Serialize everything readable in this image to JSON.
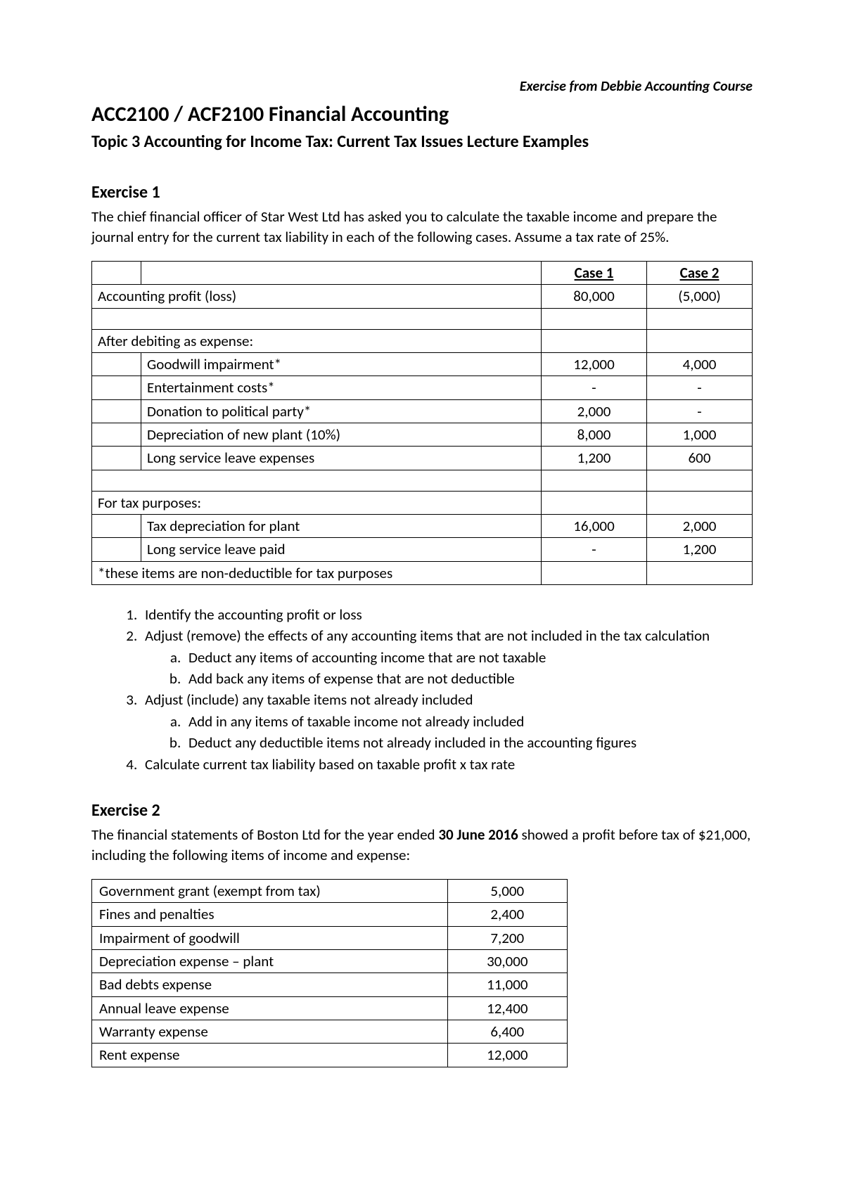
{
  "header": {
    "course_note": "Exercise from Debbie Accounting Course",
    "title": "ACC2100 / ACF2100 Financial Accounting",
    "subtitle": "Topic 3 Accounting for Income Tax: Current Tax Issues Lecture Examples"
  },
  "exercise1": {
    "heading": "Exercise 1",
    "intro": "The chief financial officer of Star West Ltd has asked you to calculate the taxable income and prepare the journal entry for the current tax liability in each of the following cases. Assume a tax rate of 25%.",
    "table": {
      "case1_header": "Case 1",
      "case2_header": "Case 2",
      "rows": [
        {
          "label": "Accounting profit (loss)",
          "span": true,
          "c1": "80,000",
          "c2": "(5,000)"
        },
        {
          "label": "",
          "span": true,
          "c1": "",
          "c2": ""
        },
        {
          "label": "After debiting as expense:",
          "span": true,
          "c1": "",
          "c2": ""
        },
        {
          "label": "Goodwill impairment*",
          "span": false,
          "c1": "12,000",
          "c2": "4,000"
        },
        {
          "label": "Entertainment costs*",
          "span": false,
          "c1": "-",
          "c2": "-"
        },
        {
          "label": "Donation to political party*",
          "span": false,
          "c1": "2,000",
          "c2": "-"
        },
        {
          "label": "Depreciation of new plant (10%)",
          "span": false,
          "c1": "8,000",
          "c2": "1,000"
        },
        {
          "label": "Long service leave expenses",
          "span": false,
          "c1": "1,200",
          "c2": "600"
        },
        {
          "label": "",
          "span": true,
          "c1": "",
          "c2": ""
        },
        {
          "label": "For tax purposes:",
          "span": true,
          "c1": "",
          "c2": ""
        },
        {
          "label": "Tax depreciation for plant",
          "span": false,
          "c1": "16,000",
          "c2": "2,000"
        },
        {
          "label": "Long service leave paid",
          "span": false,
          "c1": "-",
          "c2": "1,200"
        },
        {
          "label": "*these items are non-deductible for tax purposes",
          "span": true,
          "c1": "",
          "c2": ""
        }
      ]
    },
    "steps": {
      "s1": "Identify the accounting profit or loss",
      "s2": "Adjust (remove) the effects of any accounting items that are not included in the tax calculation",
      "s2a": "Deduct any items of accounting income that are not taxable",
      "s2b": "Add back any items of expense that are not deductible",
      "s3": "Adjust (include) any taxable items not already included",
      "s3a": "Add in any items of taxable income not already included",
      "s3b": "Deduct any deductible items not already included in the accounting figures",
      "s4": "Calculate current tax liability based on taxable profit x tax rate"
    }
  },
  "exercise2": {
    "heading": "Exercise 2",
    "intro_pre": "The financial statements of Boston Ltd for the year ended ",
    "intro_date": "30 June 2016",
    "intro_post": " showed a profit before tax of $21,000, including the following items of income and expense:",
    "table": {
      "rows": [
        {
          "label": "Government grant (exempt from tax)",
          "val": "5,000"
        },
        {
          "label": "Fines and penalties",
          "val": "2,400"
        },
        {
          "label": "Impairment of goodwill",
          "val": "7,200"
        },
        {
          "label": "Depreciation expense – plant",
          "val": "30,000"
        },
        {
          "label": "Bad debts expense",
          "val": "11,000"
        },
        {
          "label": "Annual leave expense",
          "val": "12,400"
        },
        {
          "label": "Warranty expense",
          "val": "6,400"
        },
        {
          "label": "Rent expense",
          "val": "12,000"
        }
      ]
    }
  }
}
